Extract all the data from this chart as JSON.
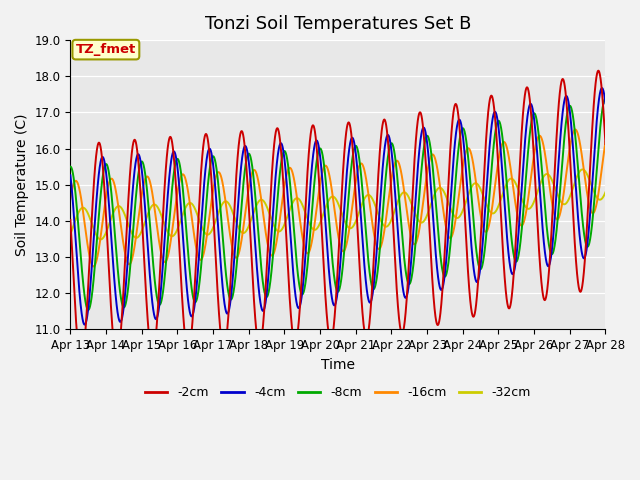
{
  "title": "Tonzi Soil Temperatures Set B",
  "xlabel": "Time",
  "ylabel": "Soil Temperature (C)",
  "ylim": [
    11.0,
    19.0
  ],
  "yticks": [
    11.0,
    12.0,
    13.0,
    14.0,
    15.0,
    16.0,
    17.0,
    18.0,
    19.0
  ],
  "xtick_labels": [
    "Apr 13",
    "Apr 14",
    "Apr 15",
    "Apr 16",
    "Apr 17",
    "Apr 18",
    "Apr 19",
    "Apr 20",
    "Apr 21",
    "Apr 22",
    "Apr 23",
    "Apr 24",
    "Apr 25",
    "Apr 26",
    "Apr 27",
    "Apr 28"
  ],
  "colors": {
    "-2cm": "#cc0000",
    "-4cm": "#0000cc",
    "-8cm": "#00aa00",
    "-16cm": "#ff8800",
    "-32cm": "#cccc00"
  },
  "legend_labels": [
    "-2cm",
    "-4cm",
    "-8cm",
    "-16cm",
    "-32cm"
  ],
  "annotation_label": "TZ_fmet",
  "annotation_box_facecolor": "#ffffcc",
  "annotation_text_color": "#cc0000",
  "annotation_box_edgecolor": "#999900",
  "plot_bg_color": "#e8e8e8",
  "fig_bg_color": "#f2f2f2",
  "title_fontsize": 13,
  "axis_label_fontsize": 10,
  "tick_fontsize": 8.5,
  "line_width": 1.4
}
